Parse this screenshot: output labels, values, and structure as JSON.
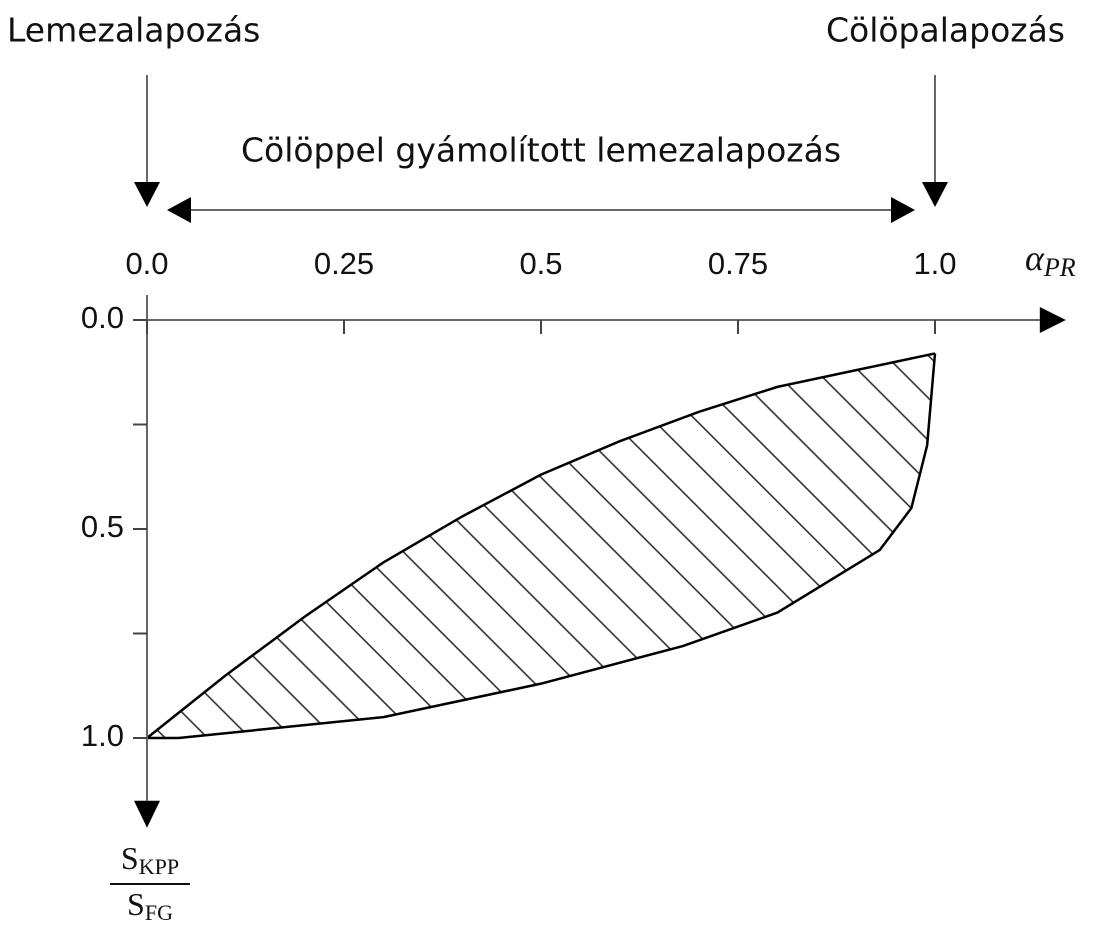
{
  "chart_data": {
    "type": "range_area",
    "annotations": [
      {
        "text": "Lemezalapozás",
        "x": 0
      },
      {
        "text": "Cölöpalapozás",
        "x": 1
      }
    ],
    "range_annotation": {
      "text": "Cölöppel gyámolított lemezalapozás",
      "x": [
        0,
        1
      ]
    },
    "x_label": {
      "symbol": "α",
      "subscript": "PR"
    },
    "y_label": {
      "numerator": {
        "symbol": "S",
        "subscript": "KPP"
      },
      "denominator": {
        "symbol": "S",
        "subscript": "FG"
      }
    },
    "xlim": [
      0,
      1.133
    ],
    "ylim": [
      0,
      1.15
    ],
    "y_inverted": true,
    "xticks": [
      {
        "value": 0,
        "label": "0.0"
      },
      0.25,
      0.5,
      0.75,
      {
        "value": 1,
        "label": "1.0"
      }
    ],
    "yticks": [
      {
        "value": 0,
        "label": "0.0"
      },
      0.5,
      {
        "value": 1,
        "label": "1.0"
      }
    ],
    "yminor_ticks": [
      0.25,
      0.75
    ],
    "upper": {
      "x": [
        0,
        0.1,
        0.2,
        0.3,
        0.4,
        0.5,
        0.6,
        0.7,
        0.8,
        0.9,
        1.0
      ],
      "values": [
        1.0,
        0.85,
        0.71,
        0.58,
        0.47,
        0.37,
        0.29,
        0.22,
        0.16,
        0.12,
        0.08
      ]
    },
    "lower": {
      "x": [
        0,
        0.04,
        0.3,
        0.5,
        0.68,
        0.8,
        0.93,
        0.97,
        0.99,
        1.0
      ],
      "values": [
        1.0,
        1.0,
        0.95,
        0.87,
        0.78,
        0.7,
        0.55,
        0.45,
        0.3,
        0.08
      ]
    },
    "hatch": true,
    "color": "#000000"
  }
}
